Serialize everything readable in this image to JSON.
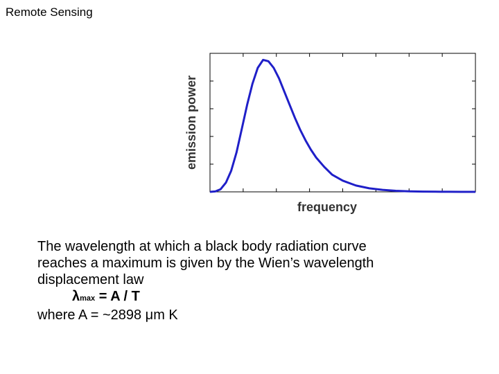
{
  "page": {
    "title": "Remote Sensing"
  },
  "chart_data": {
    "type": "line",
    "xlabel": "frequency",
    "ylabel": "emission power",
    "grid": false,
    "legend": "none",
    "xlim": [
      0,
      1
    ],
    "ylim": [
      0,
      1.05
    ],
    "series": [
      {
        "color": "#1f1fc8",
        "x": [
          0.0,
          0.02,
          0.04,
          0.06,
          0.08,
          0.1,
          0.12,
          0.14,
          0.16,
          0.18,
          0.2,
          0.22,
          0.24,
          0.26,
          0.28,
          0.3,
          0.32,
          0.34,
          0.36,
          0.38,
          0.4,
          0.43,
          0.46,
          0.5,
          0.55,
          0.6,
          0.65,
          0.7,
          0.75,
          0.8,
          0.85,
          0.9,
          0.95,
          1.0
        ],
        "y": [
          0.0,
          0.003,
          0.02,
          0.07,
          0.16,
          0.3,
          0.48,
          0.66,
          0.82,
          0.94,
          1.0,
          0.99,
          0.94,
          0.86,
          0.76,
          0.66,
          0.56,
          0.47,
          0.39,
          0.32,
          0.26,
          0.19,
          0.13,
          0.085,
          0.048,
          0.027,
          0.015,
          0.008,
          0.004,
          0.002,
          0.001,
          0.0005,
          0.0002,
          0.0
        ]
      }
    ]
  },
  "text": {
    "line1": "The wavelength at which a black body radiation curve",
    "line2": "reaches a maximum is given by the Wien’s wavelength",
    "line3": "displacement law",
    "formula_lambda": "λ",
    "formula_sub": "max",
    "formula_rest": " = A / T",
    "line5": "where A = ~2898 μm K"
  }
}
